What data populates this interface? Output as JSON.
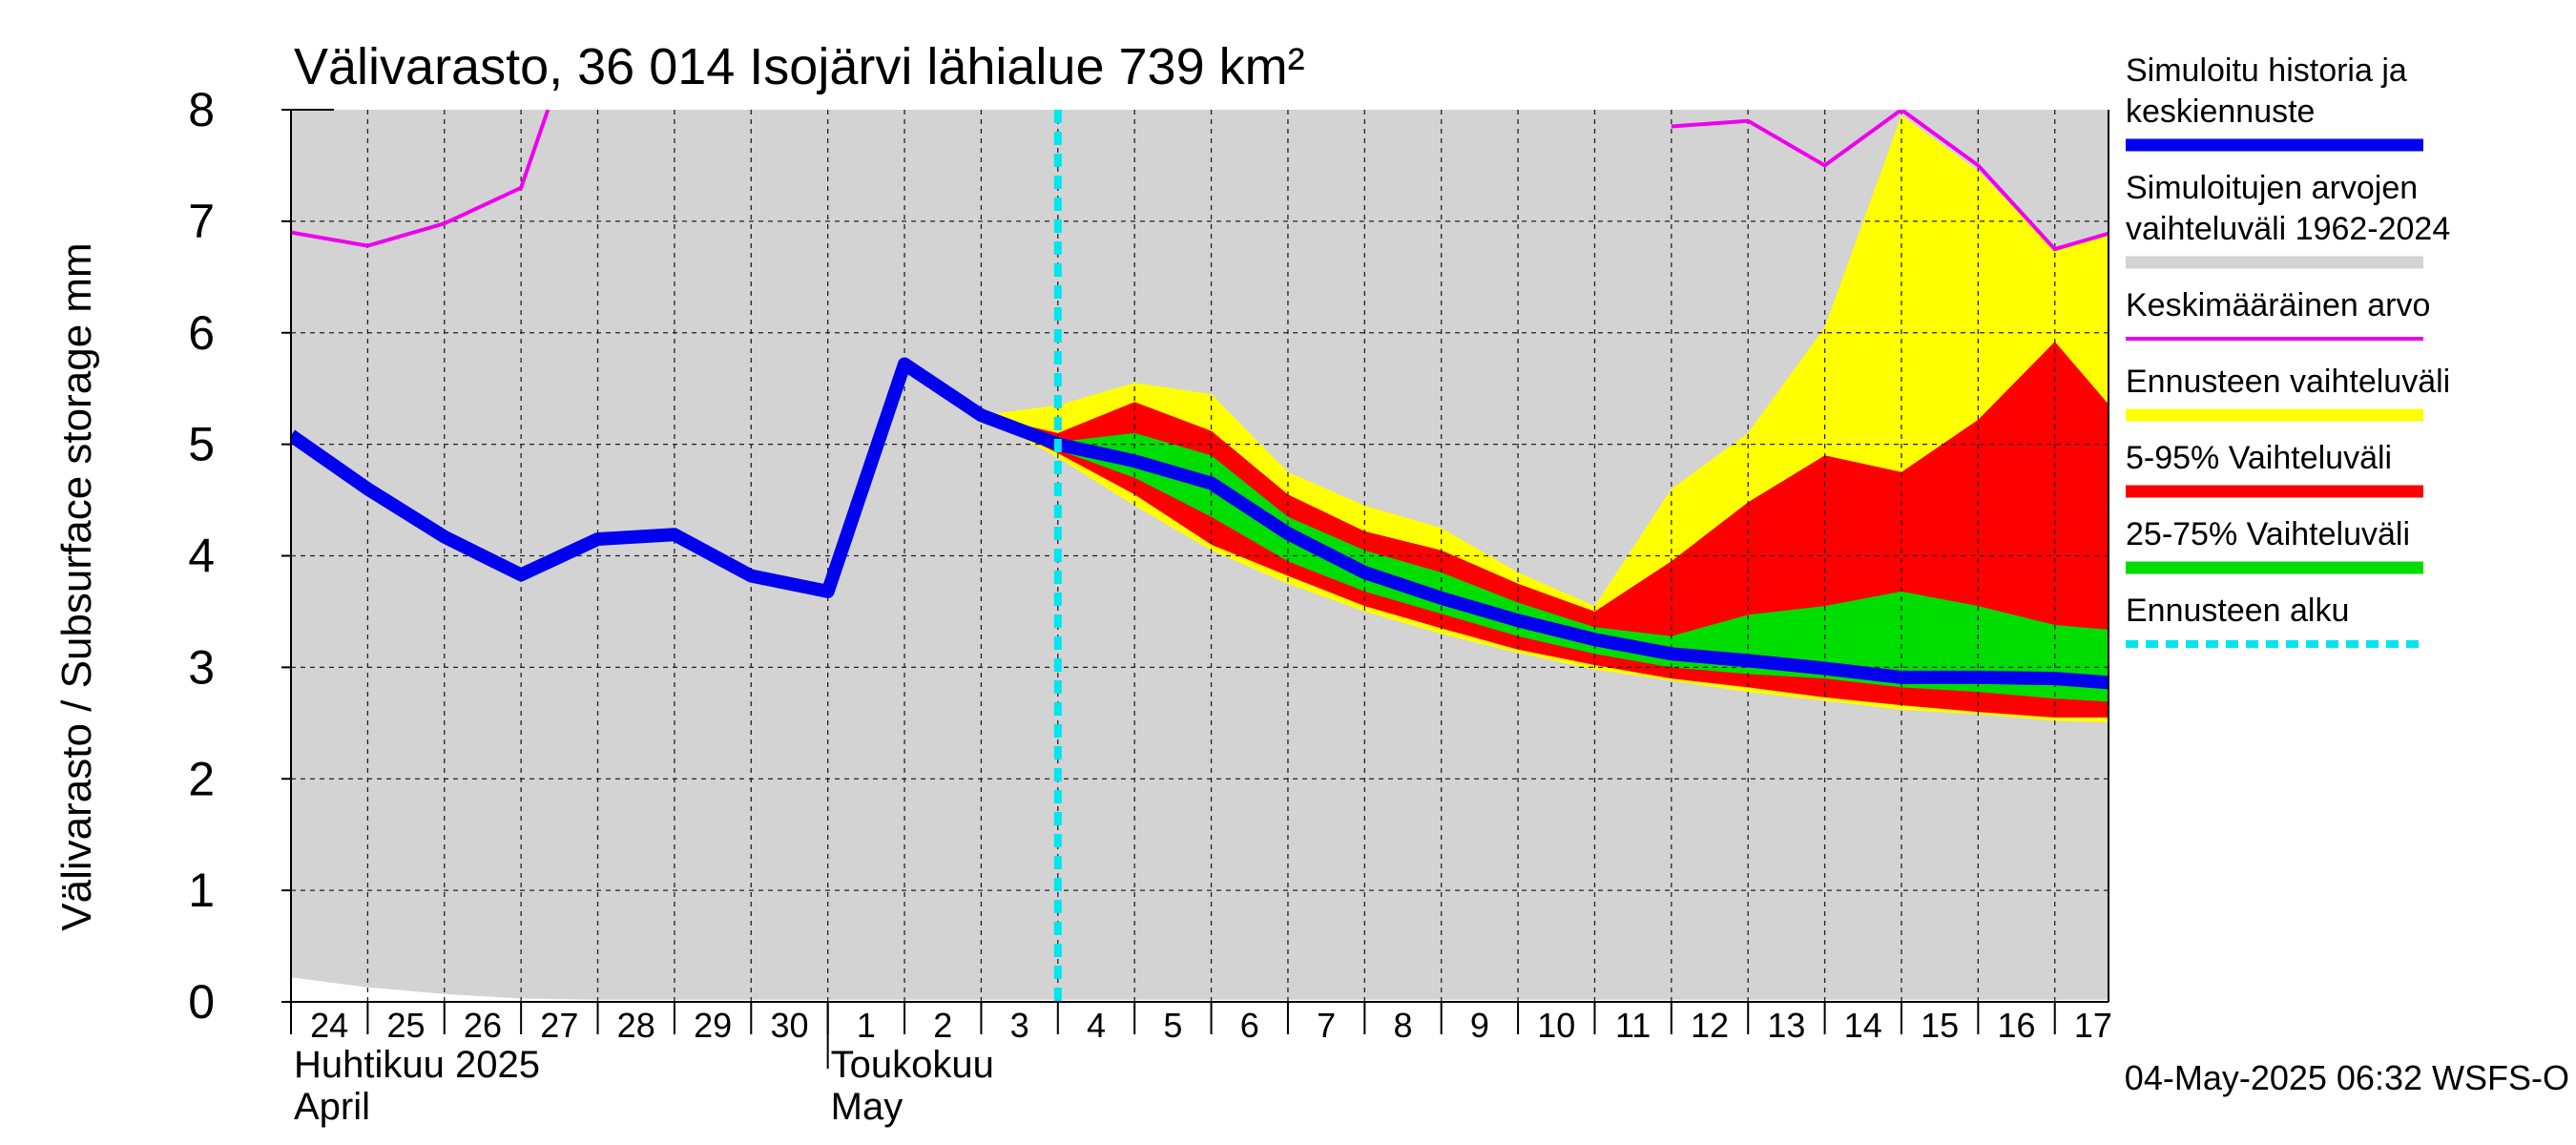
{
  "chart_data": {
    "type": "area",
    "title": "Välivarasto, 36 014 Isojärvi lähialue 739 km²",
    "ylabel": "Välivarasto / Subsurface storage  mm",
    "ylim": [
      0,
      8
    ],
    "yticks": [
      "0",
      "1",
      "2",
      "3",
      "4",
      "5",
      "6",
      "7",
      "8"
    ],
    "x_tick_labels": [
      "24",
      "25",
      "26",
      "27",
      "28",
      "29",
      "30",
      "1",
      "2",
      "3",
      "4",
      "5",
      "6",
      "7",
      "8",
      "9",
      "10",
      "11",
      "12",
      "13",
      "14",
      "15",
      "16",
      "17"
    ],
    "month_labels": [
      {
        "fi": "Huhtikuu  2025",
        "en": "April"
      },
      {
        "fi": "Toukokuu",
        "en": "May"
      }
    ],
    "forecast_start_day": 10,
    "timestamp": "04-May-2025 06:32 WSFS-O",
    "grid": true,
    "legend_position": "right",
    "colors": {
      "history": "#0000ee",
      "historic_range": "#d3d3d3",
      "mean": "#ee00ee",
      "forecast_range": "#ffff00",
      "p5_95": "#ff0000",
      "p25_75": "#00dd00",
      "forecast_start": "#00e5ee"
    },
    "legend": [
      {
        "lines": [
          "Simuloitu historia ja",
          "keskiennuste"
        ],
        "color": "#0000ee",
        "style": "thick"
      },
      {
        "lines": [
          "Simuloitujen arvojen",
          "vaihteluväli 1962-2024"
        ],
        "color": "#d3d3d3",
        "style": "thick"
      },
      {
        "lines": [
          "Keskimääräinen arvo"
        ],
        "color": "#ee00ee",
        "style": "thin"
      },
      {
        "lines": [
          "Ennusteen vaihteluväli"
        ],
        "color": "#ffff00",
        "style": "thick"
      },
      {
        "lines": [
          "5-95% Vaihteluväli"
        ],
        "color": "#ff0000",
        "style": "thick"
      },
      {
        "lines": [
          "25-75% Vaihteluväli"
        ],
        "color": "#00dd00",
        "style": "thick"
      },
      {
        "lines": [
          "Ennusteen alku"
        ],
        "color": "#00e5ee",
        "style": "dashed"
      }
    ],
    "series": [
      {
        "name": "Simuloitu historia ja keskiennuste",
        "x": [
          0,
          1,
          2,
          3,
          4,
          5,
          6,
          7,
          8,
          9,
          10,
          11,
          12,
          13,
          14,
          15,
          16,
          17,
          18,
          19,
          20,
          21,
          22,
          23,
          23.95
        ],
        "values": [
          5.08,
          4.6,
          4.17,
          3.83,
          4.15,
          4.19,
          3.82,
          3.68,
          5.72,
          5.26,
          5.0,
          4.85,
          4.65,
          4.2,
          3.85,
          3.62,
          3.42,
          3.25,
          3.12,
          3.06,
          2.99,
          2.91,
          2.91,
          2.9,
          2.85
        ]
      },
      {
        "name": "Keskimääräinen arvo",
        "x": [
          0,
          1,
          2,
          3,
          3.35
        ],
        "values": [
          6.9,
          6.78,
          6.98,
          7.3,
          8.0
        ]
      },
      {
        "name": "Keskimääräinen arvo",
        "x": [
          18,
          19,
          20,
          21,
          22,
          23,
          24
        ],
        "values": [
          7.85,
          7.9,
          7.5,
          8.0,
          7.5,
          6.75,
          6.95
        ]
      }
    ],
    "historic_range": {
      "x": [
        0,
        1,
        2,
        3,
        4,
        5,
        6,
        7,
        8,
        9,
        10,
        11,
        12,
        13,
        14,
        15,
        16,
        17,
        18,
        19,
        20,
        21,
        22,
        23,
        24
      ],
      "upper": [
        8,
        8,
        8,
        8,
        8,
        8,
        8,
        8,
        8,
        8,
        8,
        8,
        8,
        8,
        8,
        8,
        8,
        8,
        8,
        8,
        8,
        8,
        8,
        8,
        8
      ],
      "lower": [
        0.22,
        0.13,
        0.07,
        0.03,
        0.02,
        0.02,
        0.02,
        0.02,
        0.02,
        0.02,
        0.02,
        0.02,
        0.02,
        0.02,
        0.02,
        0.02,
        0.02,
        0.02,
        0.02,
        0.02,
        0.02,
        0.02,
        0.02,
        0.02,
        0.02
      ]
    },
    "forecast_bands": {
      "x": [
        9,
        10,
        11,
        12,
        13,
        14,
        15,
        16,
        17,
        18,
        19,
        20,
        21,
        22,
        23,
        24
      ],
      "range_upper": [
        5.26,
        5.35,
        5.55,
        5.45,
        4.75,
        4.45,
        4.25,
        3.85,
        3.55,
        4.6,
        5.1,
        6.05,
        7.95,
        7.45,
        6.75,
        6.95
      ],
      "range_lower": [
        5.26,
        4.88,
        4.45,
        4.05,
        3.75,
        3.5,
        3.3,
        3.13,
        2.98,
        2.88,
        2.78,
        2.7,
        2.62,
        2.58,
        2.52,
        2.5
      ],
      "p95": [
        5.26,
        5.1,
        5.38,
        5.12,
        4.55,
        4.22,
        4.05,
        3.75,
        3.5,
        3.95,
        4.48,
        4.9,
        4.75,
        5.22,
        5.92,
        5.12
      ],
      "p5": [
        5.26,
        4.92,
        4.55,
        4.1,
        3.82,
        3.55,
        3.35,
        3.16,
        3.02,
        2.9,
        2.82,
        2.73,
        2.66,
        2.6,
        2.55,
        2.55
      ],
      "p75": [
        5.26,
        5.02,
        5.1,
        4.9,
        4.35,
        4.05,
        3.85,
        3.58,
        3.36,
        3.28,
        3.47,
        3.55,
        3.68,
        3.55,
        3.38,
        3.32
      ],
      "p25": [
        5.26,
        4.95,
        4.7,
        4.35,
        3.95,
        3.68,
        3.48,
        3.28,
        3.12,
        3.0,
        2.94,
        2.9,
        2.82,
        2.78,
        2.72,
        2.68
      ]
    }
  }
}
